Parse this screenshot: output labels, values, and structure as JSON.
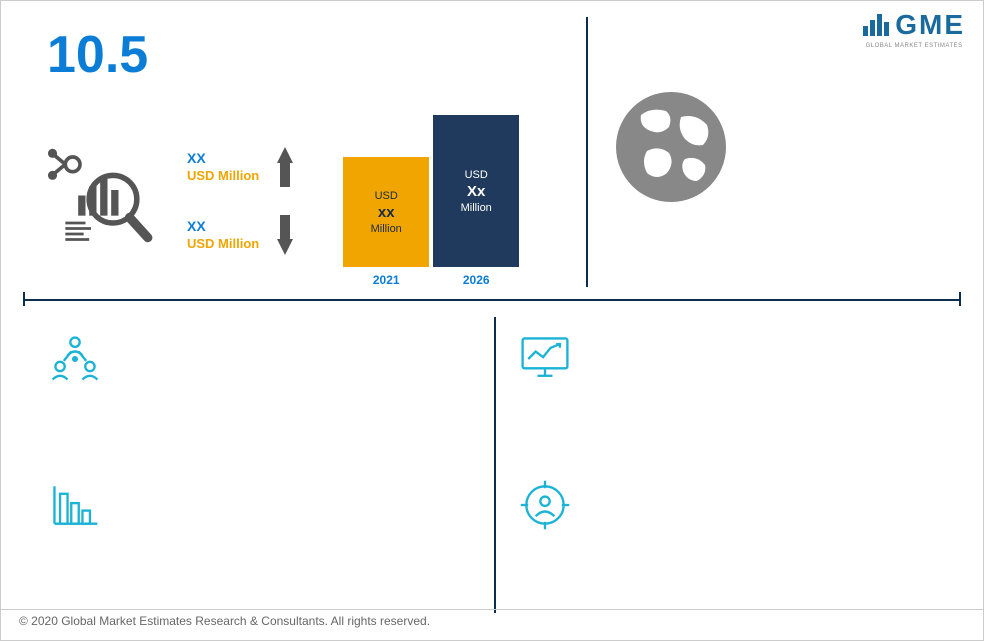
{
  "header": {
    "big_number": "10.5",
    "big_number_color": "#0b7dd6",
    "logo_text": "GME",
    "logo_subtext": "GLOBAL MARKET ESTIMATES"
  },
  "updown": {
    "up_xx": "XX",
    "up_usd": "USD Million",
    "down_xx": "XX",
    "down_usd": "USD Million",
    "xx_color": "#0b7dd6",
    "usd_color": "#f0a500"
  },
  "bars": {
    "bar1": {
      "year": "2021",
      "currency": "USD",
      "value": "xx",
      "unit": "Million",
      "height": 110,
      "color": "#f0a500",
      "text_color": "#1a2b44",
      "label_color": "#0b7dd6"
    },
    "bar2": {
      "year": "2026",
      "currency": "USD",
      "value": "Xx",
      "unit": "Million",
      "height": 152,
      "color": "#1f3a5c",
      "text_color": "#ffffff",
      "label_color": "#0b7dd6"
    }
  },
  "colors": {
    "divider": "#0b2d4e",
    "icon_gray": "#555555",
    "icon_cyan": "#1ab3d6",
    "globe": "#888888",
    "footer_text": "#666666"
  },
  "footer": {
    "text": "© 2020 Global Market Estimates Research & Consultants. All rights reserved."
  }
}
